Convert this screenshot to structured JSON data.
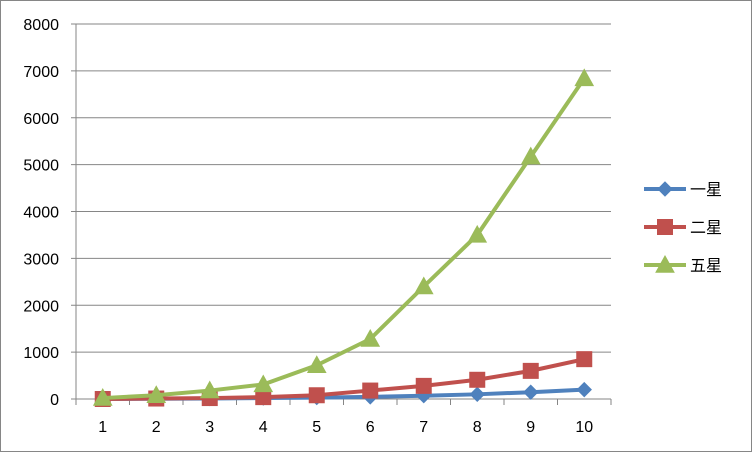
{
  "chart_data": {
    "type": "line",
    "title": "",
    "xlabel": "",
    "ylabel": "",
    "x": [
      1,
      2,
      3,
      4,
      5,
      6,
      7,
      8,
      9,
      10
    ],
    "ylim": [
      0,
      8000
    ],
    "yticks": [
      0,
      1000,
      2000,
      3000,
      4000,
      5000,
      6000,
      7000,
      8000
    ],
    "grid": "horizontal",
    "legend_position": "right",
    "series": [
      {
        "name": "一星",
        "color": "#4F81BD",
        "marker": "diamond",
        "values": [
          0,
          5,
          10,
          20,
          30,
          45,
          70,
          100,
          145,
          200
        ]
      },
      {
        "name": "二星",
        "color": "#C0504D",
        "marker": "square",
        "values": [
          0,
          10,
          20,
          40,
          80,
          180,
          280,
          410,
          600,
          850
        ]
      },
      {
        "name": "五星",
        "color": "#9BBB59",
        "marker": "triangle",
        "values": [
          20,
          80,
          180,
          310,
          720,
          1280,
          2400,
          3500,
          5170,
          6840
        ]
      }
    ]
  }
}
